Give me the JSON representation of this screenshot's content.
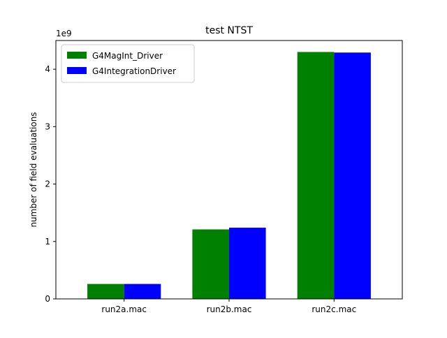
{
  "chart_data": {
    "type": "bar",
    "title": "test NTST",
    "xlabel": "",
    "ylabel": "number of field evaluations",
    "y_offset_label": "1e9",
    "y_scale": 1000000000,
    "categories": [
      "run2a.mac",
      "run2b.mac",
      "run2c.mac"
    ],
    "series": [
      {
        "name": "G4MagInt_Driver",
        "color": "#008000",
        "values": [
          260000000,
          1210000000,
          4300000000
        ]
      },
      {
        "name": "G4IntegrationDriver",
        "color": "#0000ff",
        "values": [
          260000000,
          1240000000,
          4290000000
        ]
      }
    ],
    "ylim": [
      0,
      4500000000
    ],
    "yticks": [
      0,
      1,
      2,
      3,
      4
    ],
    "grid": false,
    "legend_position": "upper-left"
  }
}
